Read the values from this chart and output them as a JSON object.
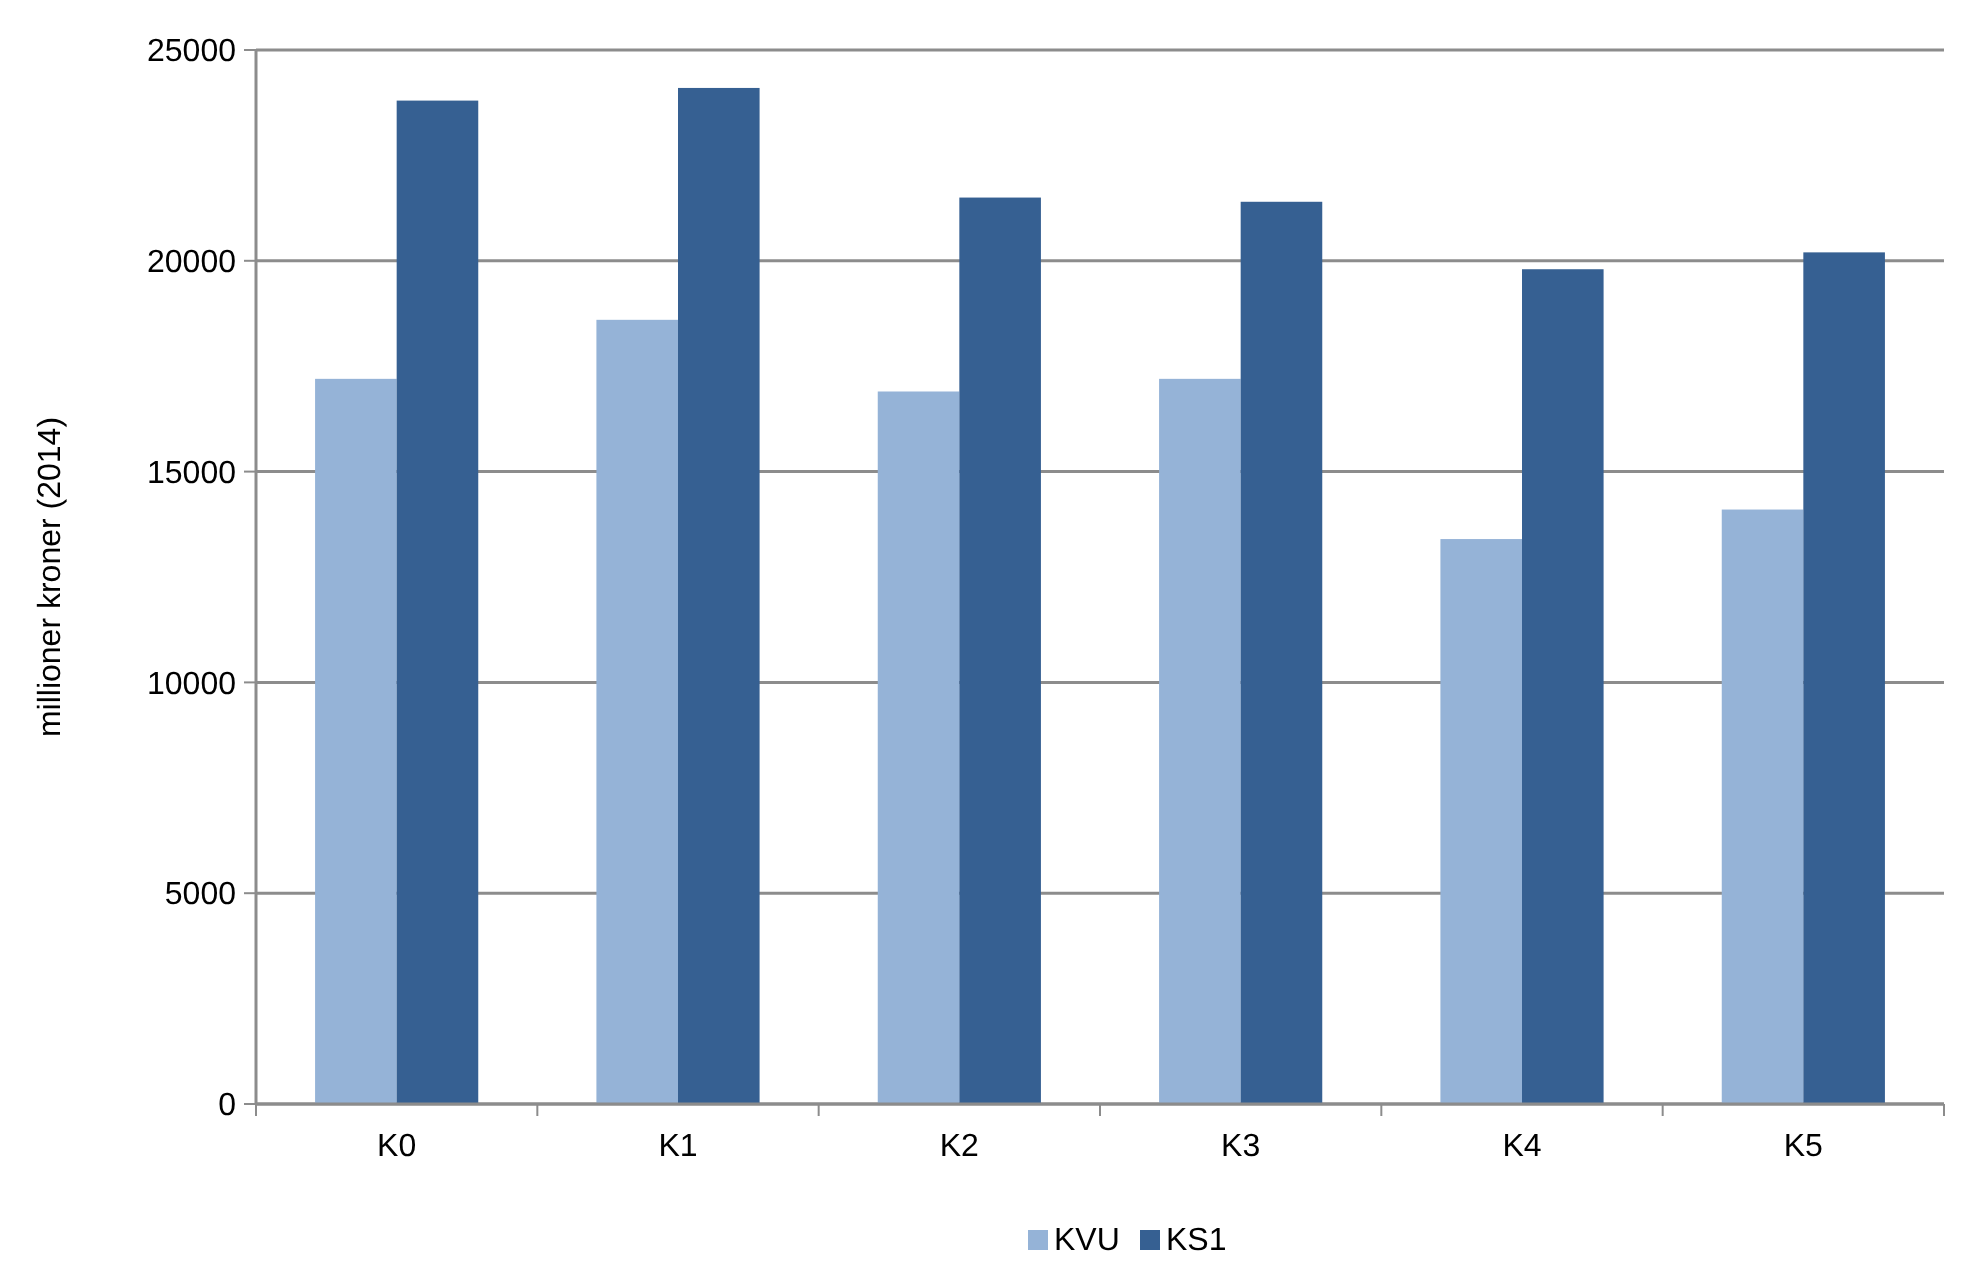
{
  "chart_data": {
    "type": "bar",
    "ylabel": "millioner kroner (2014)",
    "categories": [
      "K0",
      "K1",
      "K2",
      "K3",
      "K4",
      "K5"
    ],
    "series": [
      {
        "name": "KVU",
        "color": "#95b3d7",
        "values": [
          17200,
          18600,
          16900,
          17200,
          13400,
          14100
        ]
      },
      {
        "name": "KS1",
        "color": "#366092",
        "values": [
          23800,
          24100,
          21500,
          21400,
          19800,
          20200
        ]
      }
    ],
    "ylim": [
      0,
      25000
    ],
    "yticks": [
      0,
      5000,
      10000,
      15000,
      20000,
      25000
    ],
    "grid": "y",
    "legend": "bottom"
  }
}
